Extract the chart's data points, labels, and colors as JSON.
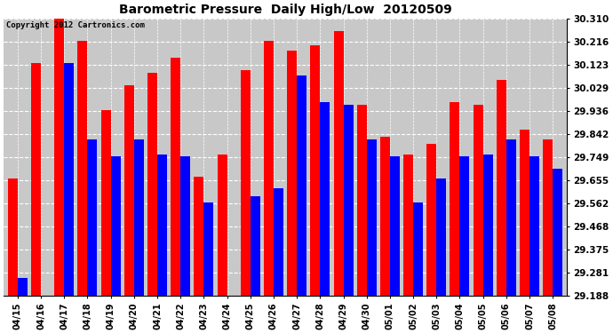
{
  "title": "Barometric Pressure  Daily High/Low  20120509",
  "copyright": "Copyright 2012 Cartronics.com",
  "dates": [
    "04/15",
    "04/16",
    "04/17",
    "04/18",
    "04/19",
    "04/20",
    "04/21",
    "04/22",
    "04/23",
    "04/24",
    "04/25",
    "04/26",
    "04/27",
    "04/28",
    "04/29",
    "04/30",
    "05/01",
    "05/02",
    "05/03",
    "05/04",
    "05/05",
    "05/06",
    "05/07",
    "05/08"
  ],
  "highs": [
    29.66,
    30.13,
    30.31,
    30.22,
    29.94,
    30.04,
    30.09,
    30.15,
    29.67,
    29.76,
    30.1,
    30.22,
    30.18,
    30.2,
    30.26,
    29.96,
    29.83,
    29.76,
    29.8,
    29.97,
    29.96,
    30.06,
    29.86,
    29.82
  ],
  "lows": [
    29.26,
    29.188,
    30.13,
    29.82,
    29.75,
    29.82,
    29.76,
    29.75,
    29.565,
    29.188,
    29.59,
    29.62,
    30.08,
    29.97,
    29.96,
    29.82,
    29.75,
    29.565,
    29.66,
    29.75,
    29.76,
    29.82,
    29.75,
    29.7
  ],
  "ylim_min": 29.188,
  "ylim_max": 30.31,
  "yticks": [
    29.188,
    29.281,
    29.375,
    29.468,
    29.562,
    29.655,
    29.749,
    29.842,
    29.936,
    30.029,
    30.123,
    30.216,
    30.31
  ],
  "high_color": "#FF0000",
  "low_color": "#0000FF",
  "bg_color": "#C8C8C8",
  "title_fontsize": 10,
  "copyright_fontsize": 6.5
}
